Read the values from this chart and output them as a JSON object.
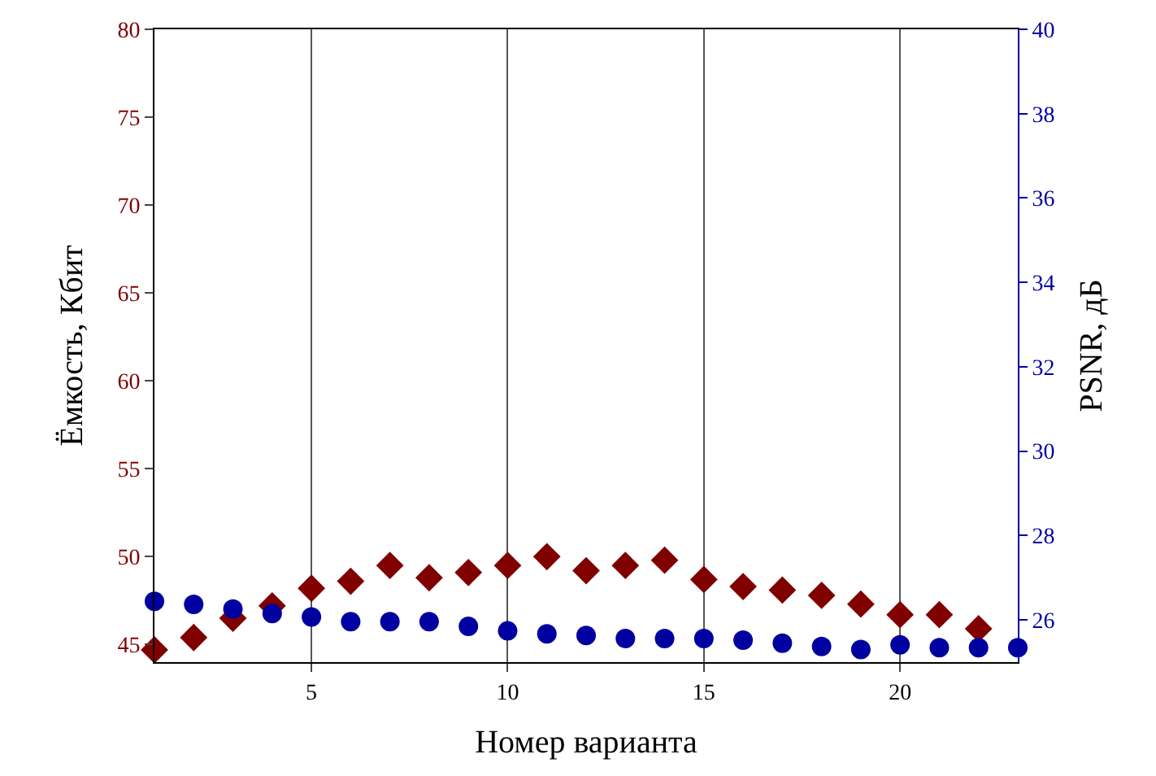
{
  "chart_data": {
    "type": "scatter",
    "xlabel": "Номер варианта",
    "ylabel": "Ёмкость, Кбит",
    "y2label": "PSNR, дБ",
    "xlim": [
      1,
      23
    ],
    "xticks": [
      5,
      10,
      15,
      20
    ],
    "ylim": [
      44,
      80
    ],
    "yticks": [
      45,
      50,
      55,
      60,
      65,
      70,
      75,
      80
    ],
    "y2lim": [
      25,
      40
    ],
    "y2ticks": [
      26,
      28,
      30,
      32,
      34,
      36,
      38,
      40
    ],
    "grid": "x",
    "series": [
      {
        "color": "#800000",
        "marker": "diamond",
        "x": [
          1,
          2,
          3,
          4,
          5,
          6,
          7,
          8,
          9,
          10,
          11,
          12,
          13,
          14,
          15,
          16,
          17,
          18,
          19,
          20,
          21,
          22
        ],
        "values": [
          44.7,
          45.4,
          46.5,
          47.2,
          48.2,
          48.6,
          49.5,
          48.8,
          49.1,
          49.5,
          50.0,
          49.2,
          49.5,
          49.8,
          48.7,
          48.3,
          48.1,
          47.8,
          47.3,
          46.7,
          46.7,
          45.9
        ]
      },
      {
        "color": "#0000a0",
        "marker": "circle",
        "axis": "y2",
        "x": [
          1,
          2,
          3,
          4,
          5,
          6,
          7,
          8,
          9,
          10,
          11,
          12,
          13,
          14,
          15,
          16,
          17,
          18,
          19,
          20,
          21,
          22,
          23
        ],
        "values": [
          26.44,
          26.37,
          26.26,
          26.15,
          26.07,
          25.96,
          25.96,
          25.96,
          25.85,
          25.74,
          25.67,
          25.63,
          25.56,
          25.56,
          25.56,
          25.52,
          25.45,
          25.37,
          25.3,
          25.41,
          25.34,
          25.34,
          25.34
        ]
      }
    ]
  }
}
